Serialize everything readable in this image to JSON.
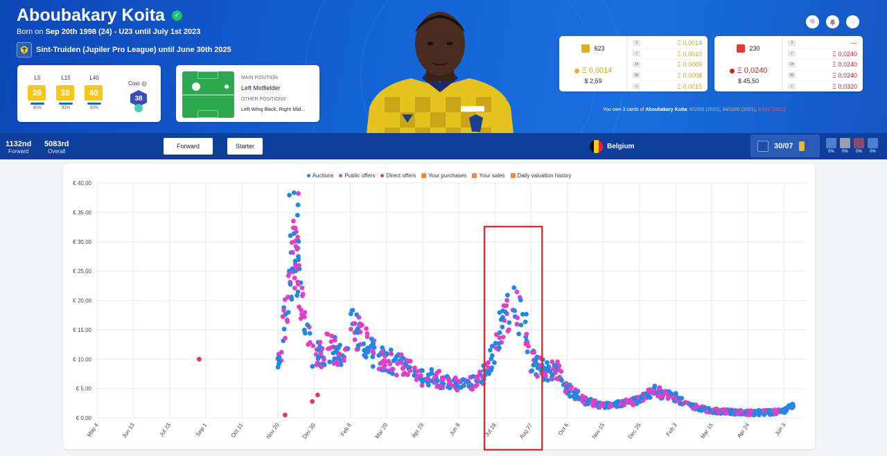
{
  "header": {
    "player_name": "Aboubakary Koita",
    "born_prefix": "Born on ",
    "born_date": "Sep 20th 1998 (24)",
    "born_suffix": " - U23 until July 1st 2023",
    "club_text": "Sint-Truiden (Jupiler Pro League) until June 30th 2025"
  },
  "scores": [
    {
      "label": "L5",
      "value": "39",
      "pct": "80%"
    },
    {
      "label": "L15",
      "value": "38",
      "pct": "93%"
    },
    {
      "label": "L40",
      "value": "40",
      "pct": "80%"
    }
  ],
  "cost": {
    "label": "Cost",
    "value": "38"
  },
  "position": {
    "main_label": "MAIN POSITION",
    "main_value": "Left Midfielder",
    "other_label": "OTHER POSITIONS",
    "other_value": "Left Wing Back, Right Mid..."
  },
  "price_cards": [
    {
      "count": "623",
      "eth": "Ξ 0,0014",
      "usd": "$ 2,59",
      "color": "#e0b020",
      "rows": [
        {
          "tag": "3",
          "value": "Ξ 0,0014"
        },
        {
          "tag": "7",
          "value": "Ξ 0,0010"
        },
        {
          "tag": "14",
          "value": "Ξ 0,0009"
        },
        {
          "tag": "30",
          "value": "Ξ 0,0008"
        },
        {
          "tag": "♛",
          "value": "Ξ 0,0015"
        }
      ]
    },
    {
      "count": "230",
      "eth": "Ξ 0,0240",
      "usd": "$ 45,50",
      "color": "#c8202a",
      "rows": [
        {
          "tag": "3",
          "value": "---"
        },
        {
          "tag": "7",
          "value": "Ξ 0,0240"
        },
        {
          "tag": "14",
          "value": "Ξ 0,0240"
        },
        {
          "tag": "30",
          "value": "Ξ 0,0240"
        },
        {
          "tag": "♛",
          "value": "Ξ 0,0320"
        }
      ]
    }
  ],
  "ownership": {
    "prefix": "You own 3 cards of ",
    "name": "Aboubakary Koita",
    "colon": ": ",
    "card1": "6/1000 (2022)",
    "sep1": ", ",
    "card2": "94/1000 (2021)",
    "sep2": ", ",
    "card3": "8/100 (2022)"
  },
  "ranks": [
    {
      "value": "1132nd",
      "label": "Forward"
    },
    {
      "value": "5083rd",
      "label": "Overall"
    }
  ],
  "buttons": {
    "forward": "Forward",
    "starter": "Starter"
  },
  "country": "Belgium",
  "games": "30/07",
  "small_stats": [
    "0%",
    "0%",
    "0%",
    "0%"
  ],
  "legend": [
    "Auctions",
    "Public offers",
    "Direct offers",
    "Your purchases",
    "Your sales",
    "Daily valuation history"
  ],
  "colors": {
    "auctions": "#1e88e5",
    "public_offers": "#e040c8",
    "direct_offers": "#e53950",
    "highlight_box": "#d32f2f"
  },
  "icons": [
    "gear-icon",
    "bell-icon",
    "heart-icon",
    "verified-check-icon",
    "lock-icon"
  ],
  "chart_data": {
    "type": "scatter",
    "y_tick_labels": [
      "€ 0,00",
      "€ 5,00",
      "€ 10,00",
      "€ 15,00",
      "€ 20,00",
      "€ 25,00",
      "€ 30,00",
      "€ 35,00",
      "€ 40,00"
    ],
    "ylim": [
      0,
      40
    ],
    "x_tick_labels": [
      "May 4",
      "Jun 13",
      "Jul 23",
      "Sep 1",
      "Oct 11",
      "Nov 20",
      "Dec 30",
      "Feb 8",
      "Mar 20",
      "Apr 29",
      "Jun 8",
      "Jul 18",
      "Aug 27",
      "Oct 6",
      "Nov 15",
      "Dec 25",
      "Feb 3",
      "Mar 15",
      "Apr 24",
      "Jun 3"
    ],
    "grid": true,
    "legend_position": "top-center",
    "highlight_range": [
      "Jul 18",
      "Aug 27"
    ],
    "trend": [
      [
        "Nov 20",
        8.5
      ],
      [
        "Dec 1",
        20
      ],
      [
        "Dec 10",
        26
      ],
      [
        "Dec 20",
        16
      ],
      [
        "Dec 30",
        10
      ],
      [
        "Jan 15",
        12
      ],
      [
        "Feb 1",
        11
      ],
      [
        "Feb 8",
        16
      ],
      [
        "Feb 20",
        14
      ],
      [
        "Mar 5",
        11
      ],
      [
        "Mar 20",
        10
      ],
      [
        "Apr 5",
        9
      ],
      [
        "Apr 29",
        7
      ],
      [
        "May 20",
        6.5
      ],
      [
        "Jun 8",
        5.5
      ],
      [
        "Jun 25",
        6
      ],
      [
        "Jul 10",
        8
      ],
      [
        "Jul 25",
        16
      ],
      [
        "Aug 10",
        19
      ],
      [
        "Aug 20",
        17
      ],
      [
        "Aug 27",
        10
      ],
      [
        "Sep 10",
        8
      ],
      [
        "Sep 25",
        8
      ],
      [
        "Oct 6",
        5
      ],
      [
        "Oct 25",
        3
      ],
      [
        "Nov 15",
        2
      ],
      [
        "Dec 5",
        2.5
      ],
      [
        "Dec 25",
        3
      ],
      [
        "Jan 10",
        4.5
      ],
      [
        "Jan 25",
        4
      ],
      [
        "Feb 3",
        3.5
      ],
      [
        "Feb 20",
        2
      ],
      [
        "Mar 15",
        1.2
      ],
      [
        "Apr 5",
        1
      ],
      [
        "Apr 24",
        0.9
      ],
      [
        "May 15",
        0.9
      ],
      [
        "Jun 3",
        1.2
      ],
      [
        "Jun 15",
        2.5
      ]
    ]
  }
}
